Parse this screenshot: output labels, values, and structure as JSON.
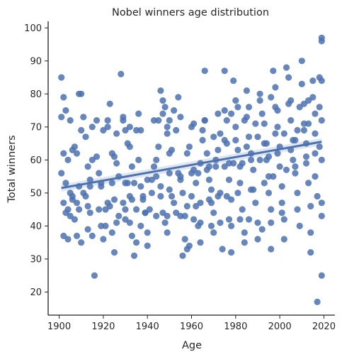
{
  "chart_data": {
    "type": "scatter",
    "title": "Nobel winners age distribution",
    "xlabel": "Age",
    "ylabel": "Total winners",
    "xlim": [
      1895,
      2025
    ],
    "ylim": [
      13,
      102
    ],
    "xticks": [
      1900,
      1920,
      1940,
      1960,
      1980,
      2000,
      2020
    ],
    "yticks": [
      20,
      30,
      40,
      50,
      60,
      70,
      80,
      90,
      100
    ],
    "grid": false,
    "marker_color": "#4c72b0",
    "regression_line": {
      "x": [
        1901,
        2019
      ],
      "y": [
        51.5,
        65.5
      ]
    },
    "points": [
      [
        1901,
        85
      ],
      [
        1902,
        79
      ],
      [
        1901,
        73
      ],
      [
        1903,
        75
      ],
      [
        1905,
        72
      ],
      [
        1902,
        62
      ],
      [
        1904,
        60
      ],
      [
        1906,
        63
      ],
      [
        1907,
        64
      ],
      [
        1908,
        62
      ],
      [
        1901,
        56
      ],
      [
        1903,
        53
      ],
      [
        1905,
        50
      ],
      [
        1906,
        48
      ],
      [
        1902,
        47
      ],
      [
        1904,
        45
      ],
      [
        1903,
        44
      ],
      [
        1905,
        43
      ],
      [
        1902,
        37
      ],
      [
        1904,
        36
      ],
      [
        1906,
        49
      ],
      [
        1908,
        47
      ],
      [
        1907,
        42
      ],
      [
        1909,
        45
      ],
      [
        1908,
        37
      ],
      [
        1910,
        35
      ],
      [
        1909,
        80
      ],
      [
        1910,
        80
      ],
      [
        1911,
        73
      ],
      [
        1912,
        67
      ],
      [
        1913,
        58
      ],
      [
        1914,
        54
      ],
      [
        1911,
        50
      ],
      [
        1912,
        49
      ],
      [
        1913,
        46
      ],
      [
        1914,
        44
      ],
      [
        1913,
        39
      ],
      [
        1915,
        37
      ],
      [
        1916,
        25
      ],
      [
        1915,
        60
      ],
      [
        1917,
        61
      ],
      [
        1918,
        56
      ],
      [
        1919,
        53
      ],
      [
        1919,
        40
      ],
      [
        1920,
        36
      ],
      [
        1921,
        45
      ],
      [
        1922,
        47
      ],
      [
        1922,
        70
      ],
      [
        1923,
        77
      ],
      [
        1924,
        62
      ],
      [
        1925,
        61
      ],
      [
        1926,
        59
      ],
      [
        1927,
        55
      ],
      [
        1925,
        48
      ],
      [
        1927,
        43
      ],
      [
        1924,
        38
      ],
      [
        1925,
        32
      ],
      [
        1928,
        86
      ],
      [
        1929,
        72
      ],
      [
        1930,
        69
      ],
      [
        1931,
        65
      ],
      [
        1932,
        64
      ],
      [
        1933,
        58
      ],
      [
        1931,
        53
      ],
      [
        1932,
        49
      ],
      [
        1930,
        45
      ],
      [
        1932,
        41
      ],
      [
        1933,
        37
      ],
      [
        1934,
        31
      ],
      [
        1935,
        35
      ],
      [
        1935,
        69
      ],
      [
        1936,
        60
      ],
      [
        1937,
        52
      ],
      [
        1938,
        48
      ],
      [
        1939,
        44
      ],
      [
        1937,
        40
      ],
      [
        1940,
        38
      ],
      [
        1940,
        34
      ],
      [
        1941,
        45
      ],
      [
        1942,
        54
      ],
      [
        1943,
        58
      ],
      [
        1944,
        60
      ],
      [
        1945,
        64
      ],
      [
        1945,
        72
      ],
      [
        1946,
        81
      ],
      [
        1947,
        78
      ],
      [
        1948,
        76
      ],
      [
        1949,
        68
      ],
      [
        1946,
        49
      ],
      [
        1947,
        44
      ],
      [
        1948,
        41
      ],
      [
        1949,
        38
      ],
      [
        1950,
        62
      ],
      [
        1951,
        63
      ],
      [
        1952,
        75
      ],
      [
        1953,
        69
      ],
      [
        1954,
        56
      ],
      [
        1955,
        54
      ],
      [
        1951,
        49
      ],
      [
        1952,
        47
      ],
      [
        1953,
        44
      ],
      [
        1956,
        31
      ],
      [
        1957,
        36
      ],
      [
        1958,
        33
      ],
      [
        1959,
        34
      ],
      [
        1957,
        43
      ],
      [
        1958,
        46
      ],
      [
        1958,
        62
      ],
      [
        1959,
        64
      ],
      [
        1960,
        70
      ],
      [
        1961,
        57
      ],
      [
        1962,
        53
      ],
      [
        1962,
        46
      ],
      [
        1963,
        40
      ],
      [
        1964,
        35
      ],
      [
        1964,
        59
      ],
      [
        1965,
        66
      ],
      [
        1966,
        87
      ],
      [
        1966,
        72
      ],
      [
        1967,
        62
      ],
      [
        1968,
        58
      ],
      [
        1968,
        54
      ],
      [
        1969,
        51
      ],
      [
        1969,
        47
      ],
      [
        1970,
        44
      ],
      [
        1970,
        38
      ],
      [
        1971,
        60
      ],
      [
        1972,
        63
      ],
      [
        1973,
        68
      ],
      [
        1973,
        50
      ],
      [
        1974,
        33
      ],
      [
        1975,
        87
      ],
      [
        1975,
        75
      ],
      [
        1976,
        72
      ],
      [
        1976,
        65
      ],
      [
        1977,
        59
      ],
      [
        1977,
        54
      ],
      [
        1978,
        48
      ],
      [
        1978,
        40
      ],
      [
        1978,
        32
      ],
      [
        1979,
        84
      ],
      [
        1980,
        78
      ],
      [
        1980,
        70
      ],
      [
        1981,
        63
      ],
      [
        1982,
        58
      ],
      [
        1982,
        53
      ],
      [
        1983,
        45
      ],
      [
        1984,
        38
      ],
      [
        1984,
        35
      ],
      [
        1985,
        81
      ],
      [
        1985,
        73
      ],
      [
        1986,
        67
      ],
      [
        1987,
        62
      ],
      [
        1988,
        57
      ],
      [
        1988,
        51
      ],
      [
        1989,
        47
      ],
      [
        1990,
        41
      ],
      [
        1990,
        36
      ],
      [
        1991,
        80
      ],
      [
        1992,
        74
      ],
      [
        1993,
        71
      ],
      [
        1993,
        65
      ],
      [
        1994,
        60
      ],
      [
        1995,
        55
      ],
      [
        1995,
        50
      ],
      [
        1996,
        45
      ],
      [
        1996,
        33
      ],
      [
        1997,
        87
      ],
      [
        1998,
        82
      ],
      [
        1998,
        76
      ],
      [
        1999,
        70
      ],
      [
        2000,
        64
      ],
      [
        2000,
        58
      ],
      [
        2001,
        52
      ],
      [
        2001,
        47
      ],
      [
        2002,
        42
      ],
      [
        2002,
        36
      ],
      [
        2003,
        88
      ],
      [
        2004,
        85
      ],
      [
        2005,
        78
      ],
      [
        2005,
        72
      ],
      [
        2006,
        66
      ],
      [
        2006,
        60
      ],
      [
        2007,
        56
      ],
      [
        2008,
        50
      ],
      [
        2008,
        45
      ],
      [
        2009,
        40
      ],
      [
        2010,
        90
      ],
      [
        2010,
        83
      ],
      [
        2011,
        77
      ],
      [
        2011,
        71
      ],
      [
        2012,
        65
      ],
      [
        2012,
        59
      ],
      [
        2013,
        53
      ],
      [
        2014,
        46
      ],
      [
        2014,
        38
      ],
      [
        2014,
        32
      ],
      [
        2015,
        84
      ],
      [
        2015,
        79
      ],
      [
        2016,
        74
      ],
      [
        2016,
        68
      ],
      [
        2016,
        55
      ],
      [
        2017,
        17
      ],
      [
        2017,
        49
      ],
      [
        2018,
        85
      ],
      [
        2018,
        76
      ],
      [
        2018,
        64
      ],
      [
        2019,
        96
      ],
      [
        2019,
        97
      ],
      [
        2019,
        84
      ],
      [
        2019,
        72
      ],
      [
        2019,
        60
      ],
      [
        2019,
        47
      ],
      [
        2019,
        43
      ],
      [
        2019,
        25
      ],
      [
        2008,
        69
      ],
      [
        2005,
        63
      ],
      [
        1999,
        62
      ],
      [
        1995,
        61
      ],
      [
        1991,
        60
      ],
      [
        1987,
        60
      ],
      [
        1983,
        59
      ],
      [
        1979,
        59
      ],
      [
        1975,
        58
      ],
      [
        1971,
        58
      ],
      [
        1967,
        57
      ],
      [
        1963,
        56
      ],
      [
        1960,
        56
      ],
      [
        1955,
        55
      ],
      [
        1950,
        56
      ],
      [
        1944,
        55
      ],
      [
        1940,
        54
      ],
      [
        1934,
        53
      ],
      [
        1930,
        53
      ],
      [
        1924,
        53
      ],
      [
        1919,
        52
      ],
      [
        1914,
        52
      ],
      [
        1909,
        52
      ],
      [
        1965,
        69
      ],
      [
        1970,
        67
      ],
      [
        1975,
        66
      ],
      [
        1980,
        66
      ],
      [
        1985,
        64
      ],
      [
        1990,
        67
      ],
      [
        1994,
        65
      ],
      [
        1998,
        68
      ],
      [
        2002,
        68
      ],
      [
        2007,
        66
      ],
      [
        2011,
        69
      ],
      [
        2013,
        71
      ],
      [
        1997,
        55
      ],
      [
        1993,
        53
      ],
      [
        1987,
        51
      ],
      [
        1981,
        50
      ],
      [
        1976,
        49
      ],
      [
        1972,
        49
      ],
      [
        1968,
        48
      ],
      [
        1964,
        47
      ],
      [
        1960,
        49
      ],
      [
        1956,
        50
      ],
      [
        1950,
        51
      ],
      [
        1946,
        52
      ],
      [
        1942,
        50
      ],
      [
        1938,
        49
      ],
      [
        1933,
        48
      ],
      [
        1929,
        47
      ],
      [
        1923,
        46
      ],
      [
        1918,
        45
      ],
      [
        2003,
        57
      ],
      [
        2007,
        58
      ],
      [
        2012,
        61
      ],
      [
        2016,
        62
      ],
      [
        1989,
        71
      ],
      [
        1984,
        72
      ],
      [
        1978,
        74
      ],
      [
        1972,
        74
      ],
      [
        1966,
        72
      ],
      [
        1961,
        71
      ],
      [
        1955,
        73
      ],
      [
        1949,
        70
      ],
      [
        1943,
        72
      ],
      [
        1937,
        69
      ],
      [
        1932,
        70
      ],
      [
        1926,
        68
      ],
      [
        1920,
        69
      ],
      [
        1915,
        70
      ],
      [
        1910,
        69
      ],
      [
        1999,
        75
      ],
      [
        2004,
        77
      ],
      [
        2009,
        76
      ],
      [
        2013,
        78
      ],
      [
        1996,
        79
      ],
      [
        1991,
        78
      ],
      [
        1986,
        76
      ],
      [
        1981,
        76
      ],
      [
        1954,
        79
      ],
      [
        1950,
        72
      ],
      [
        1947,
        74
      ],
      [
        1936,
        74
      ],
      [
        1929,
        73
      ],
      [
        1922,
        72
      ],
      [
        1917,
        72
      ],
      [
        2001,
        44
      ],
      [
        1996,
        41
      ],
      [
        1992,
        39
      ],
      [
        1986,
        42
      ],
      [
        1982,
        42
      ],
      [
        1977,
        42
      ],
      [
        1973,
        41
      ],
      [
        1969,
        40
      ],
      [
        1964,
        41
      ],
      [
        1961,
        42
      ],
      [
        1955,
        43
      ],
      [
        1949,
        43
      ],
      [
        1944,
        43
      ],
      [
        1939,
        44
      ],
      [
        1935,
        45
      ],
      [
        1930,
        42
      ],
      [
        1926,
        41
      ],
      [
        1921,
        40
      ]
    ]
  }
}
